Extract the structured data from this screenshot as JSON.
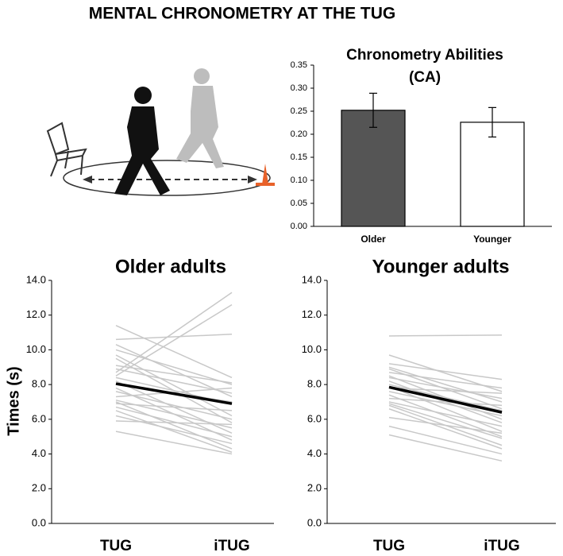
{
  "title": "MENTAL CHRONOMETRY AT THE TUG",
  "chart_data": [
    {
      "type": "bar",
      "title": "Chronometry Abilities (CA)",
      "categories": [
        "Older",
        "Younger"
      ],
      "values": [
        0.252,
        0.226
      ],
      "errors": [
        0.037,
        0.032
      ],
      "colors": [
        "#555555",
        "#ffffff"
      ],
      "ylim": [
        0,
        0.35
      ],
      "yticks": [
        {
          "value": 0,
          "label": "0.00"
        },
        {
          "value": 0.05,
          "label": "0.05"
        },
        {
          "value": 0.1,
          "label": "0.10"
        },
        {
          "value": 0.15,
          "label": "0.15"
        },
        {
          "value": 0.2,
          "label": "0.20"
        },
        {
          "value": 0.25,
          "label": "0.25"
        },
        {
          "value": 0.3,
          "label": "0.30"
        },
        {
          "value": 0.35,
          "label": "0.35"
        }
      ]
    },
    {
      "type": "line",
      "title": "Older adults",
      "ylabel": "Times (s)",
      "categories": [
        "TUG",
        "iTUG"
      ],
      "ylim": [
        0,
        14
      ],
      "yticks": [
        {
          "value": 0,
          "label": "0.0"
        },
        {
          "value": 2,
          "label": "2.0"
        },
        {
          "value": 4,
          "label": "4.0"
        },
        {
          "value": 6,
          "label": "6.0"
        },
        {
          "value": 8,
          "label": "8.0"
        },
        {
          "value": 10,
          "label": "10.0"
        },
        {
          "value": 12,
          "label": "12.0"
        },
        {
          "value": 14,
          "label": "14.0"
        }
      ],
      "series": [
        {
          "color": "#c8c8c8",
          "values": [
            11.4,
            8.4
          ]
        },
        {
          "color": "#c8c8c8",
          "values": [
            10.6,
            10.9
          ]
        },
        {
          "color": "#c8c8c8",
          "values": [
            10.3,
            7.3
          ]
        },
        {
          "color": "#c8c8c8",
          "values": [
            10.0,
            8.0
          ]
        },
        {
          "color": "#c8c8c8",
          "values": [
            9.7,
            6.2
          ]
        },
        {
          "color": "#c8c8c8",
          "values": [
            9.5,
            5.8
          ]
        },
        {
          "color": "#c8c8c8",
          "values": [
            9.1,
            8.1
          ]
        },
        {
          "color": "#c8c8c8",
          "values": [
            8.9,
            7.5
          ]
        },
        {
          "color": "#c8c8c8",
          "values": [
            8.7,
            13.3
          ]
        },
        {
          "color": "#c8c8c8",
          "values": [
            8.5,
            12.6
          ]
        },
        {
          "color": "#c8c8c8",
          "values": [
            8.4,
            6.9
          ]
        },
        {
          "color": "#c8c8c8",
          "values": [
            8.2,
            5.2
          ]
        },
        {
          "color": "#c8c8c8",
          "values": [
            8.0,
            7.0
          ]
        },
        {
          "color": "#c8c8c8",
          "values": [
            7.8,
            4.8
          ]
        },
        {
          "color": "#c8c8c8",
          "values": [
            7.6,
            6.0
          ]
        },
        {
          "color": "#c8c8c8",
          "values": [
            7.3,
            7.8
          ]
        },
        {
          "color": "#c8c8c8",
          "values": [
            7.1,
            5.5
          ]
        },
        {
          "color": "#c8c8c8",
          "values": [
            7.0,
            4.3
          ]
        },
        {
          "color": "#c8c8c8",
          "values": [
            6.9,
            6.5
          ]
        },
        {
          "color": "#c8c8c8",
          "values": [
            6.7,
            5.0
          ]
        },
        {
          "color": "#c8c8c8",
          "values": [
            6.5,
            4.1
          ]
        },
        {
          "color": "#c8c8c8",
          "values": [
            6.2,
            4.6
          ]
        },
        {
          "color": "#c8c8c8",
          "values": [
            5.9,
            5.7
          ]
        },
        {
          "color": "#c8c8c8",
          "values": [
            5.3,
            4.0
          ]
        },
        {
          "color": "#000000",
          "values": [
            8.05,
            6.9
          ]
        }
      ]
    },
    {
      "type": "line",
      "title": "Younger adults",
      "categories": [
        "TUG",
        "iTUG"
      ],
      "ylim": [
        0,
        14
      ],
      "yticks": [
        {
          "value": 0,
          "label": "0.0"
        },
        {
          "value": 2,
          "label": "2.0"
        },
        {
          "value": 4,
          "label": "4.0"
        },
        {
          "value": 6,
          "label": "6.0"
        },
        {
          "value": 8,
          "label": "8.0"
        },
        {
          "value": 10,
          "label": "10.0"
        },
        {
          "value": 12,
          "label": "12.0"
        },
        {
          "value": 14,
          "label": "14.0"
        }
      ],
      "series": [
        {
          "color": "#c8c8c8",
          "values": [
            10.8,
            10.85
          ]
        },
        {
          "color": "#c8c8c8",
          "values": [
            9.7,
            7.6
          ]
        },
        {
          "color": "#c8c8c8",
          "values": [
            9.2,
            8.3
          ]
        },
        {
          "color": "#c8c8c8",
          "values": [
            9.0,
            7.0
          ]
        },
        {
          "color": "#c8c8c8",
          "values": [
            8.9,
            6.6
          ]
        },
        {
          "color": "#c8c8c8",
          "values": [
            8.7,
            7.8
          ]
        },
        {
          "color": "#c8c8c8",
          "values": [
            8.5,
            6.0
          ]
        },
        {
          "color": "#c8c8c8",
          "values": [
            8.4,
            7.2
          ]
        },
        {
          "color": "#c8c8c8",
          "values": [
            8.2,
            5.8
          ]
        },
        {
          "color": "#c8c8c8",
          "values": [
            8.0,
            6.5
          ]
        },
        {
          "color": "#c8c8c8",
          "values": [
            7.9,
            5.3
          ]
        },
        {
          "color": "#c8c8c8",
          "values": [
            7.8,
            7.5
          ]
        },
        {
          "color": "#c8c8c8",
          "values": [
            7.6,
            6.2
          ]
        },
        {
          "color": "#c8c8c8",
          "values": [
            7.4,
            5.0
          ]
        },
        {
          "color": "#c8c8c8",
          "values": [
            7.2,
            6.8
          ]
        },
        {
          "color": "#c8c8c8",
          "values": [
            7.0,
            5.6
          ]
        },
        {
          "color": "#c8c8c8",
          "values": [
            6.9,
            4.9
          ]
        },
        {
          "color": "#c8c8c8",
          "values": [
            6.8,
            4.5
          ]
        },
        {
          "color": "#c8c8c8",
          "values": [
            6.6,
            4.3
          ]
        },
        {
          "color": "#c8c8c8",
          "values": [
            6.1,
            5.2
          ]
        },
        {
          "color": "#c8c8c8",
          "values": [
            5.6,
            4.0
          ]
        },
        {
          "color": "#c8c8c8",
          "values": [
            5.1,
            3.6
          ]
        },
        {
          "color": "#000000",
          "values": [
            7.85,
            6.4
          ]
        }
      ]
    }
  ]
}
